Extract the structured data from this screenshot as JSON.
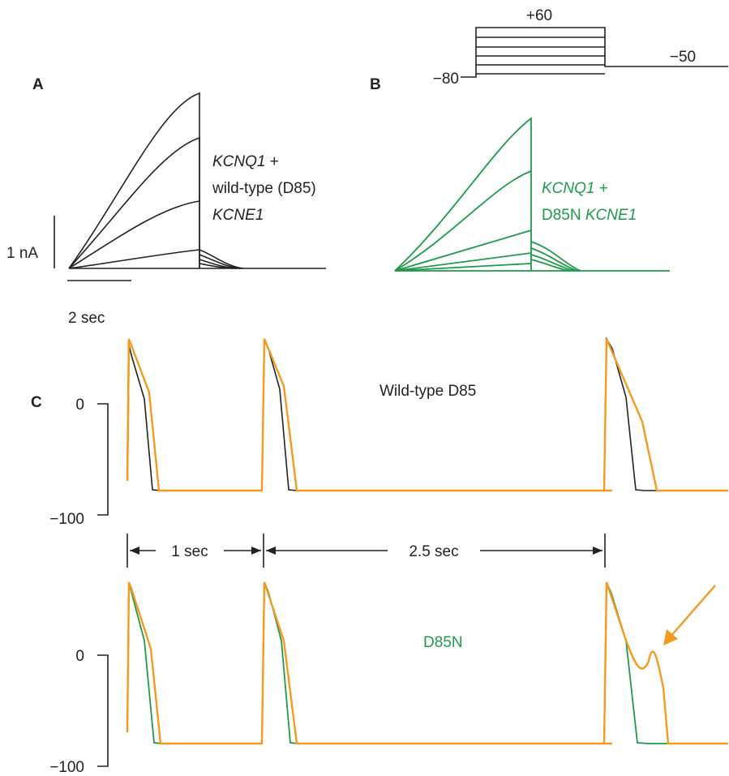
{
  "panels": {
    "a": "A",
    "b": "B",
    "c": "C"
  },
  "protocol": {
    "hold_label": "−80",
    "step_label": "+60",
    "tail_label": "−50"
  },
  "panel_a": {
    "label_line1_italic": "KCNQ1",
    "label_line1_rest": " +",
    "label_line2": "wild-type (D85)",
    "label_line3_italic": "KCNE1",
    "current_scale": "1 nA",
    "time_scale": "2 sec"
  },
  "panel_b": {
    "label_line1_italic": "KCNQ1",
    "label_line1_rest": " +",
    "label_line2_plain": "D85N ",
    "label_line2_italic": "KCNE1"
  },
  "panel_c": {
    "trace_top_label": "Wild-type D85",
    "trace_bottom_label": "D85N",
    "y_tick_zero": "0",
    "y_tick_minus100": "−100",
    "interval1": "1 sec",
    "interval2": "2.5 sec"
  },
  "colors": {
    "black": "#222222",
    "green": "#1f9a4a",
    "orange": "#f39a1f"
  }
}
